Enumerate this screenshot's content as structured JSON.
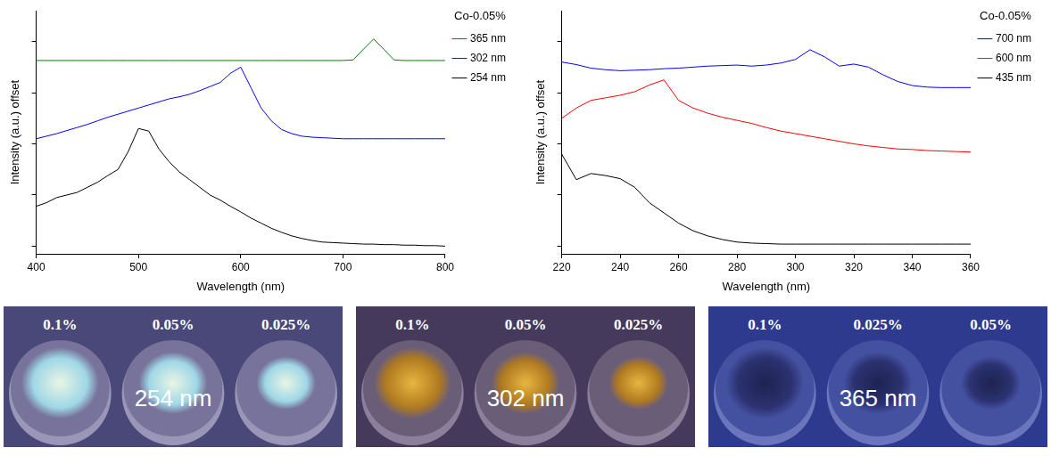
{
  "chart_data": [
    {
      "type": "line",
      "x_label": "Wavelength (nm)",
      "y_label": "Intensity (a.u.) offset",
      "legend_title": "Co-0.05%",
      "legend": "right",
      "grid": false,
      "tick_labels": "x",
      "xlim": [
        400,
        800
      ],
      "xticks": [
        400,
        500,
        600,
        700,
        800
      ],
      "ylim": [
        -0.15,
        4.6
      ],
      "yticks": [
        0,
        1,
        2,
        3,
        4
      ],
      "x": [
        400,
        410,
        420,
        430,
        440,
        450,
        460,
        470,
        480,
        490,
        500,
        510,
        520,
        530,
        540,
        550,
        560,
        570,
        580,
        590,
        600,
        610,
        620,
        630,
        640,
        650,
        660,
        670,
        680,
        690,
        700,
        710,
        720,
        730,
        740,
        750,
        760,
        770,
        780,
        790,
        800
      ],
      "series": [
        {
          "name": "365 nm",
          "color": "#008000",
          "values": [
            3.63,
            3.63,
            3.63,
            3.63,
            3.63,
            3.63,
            3.63,
            3.63,
            3.63,
            3.63,
            3.63,
            3.63,
            3.63,
            3.63,
            3.63,
            3.63,
            3.63,
            3.63,
            3.63,
            3.63,
            3.63,
            3.63,
            3.63,
            3.63,
            3.63,
            3.63,
            3.63,
            3.63,
            3.63,
            3.63,
            3.63,
            3.64,
            3.85,
            4.05,
            3.85,
            3.64,
            3.63,
            3.63,
            3.63,
            3.63,
            3.63
          ]
        },
        {
          "name": "302 nm",
          "color": "#0000ff",
          "values": [
            2.1,
            2.15,
            2.2,
            2.26,
            2.32,
            2.38,
            2.45,
            2.52,
            2.58,
            2.64,
            2.7,
            2.76,
            2.82,
            2.88,
            2.92,
            2.97,
            3.04,
            3.12,
            3.2,
            3.38,
            3.5,
            3.1,
            2.7,
            2.45,
            2.28,
            2.2,
            2.15,
            2.13,
            2.12,
            2.11,
            2.1,
            2.1,
            2.1,
            2.1,
            2.1,
            2.1,
            2.1,
            2.1,
            2.1,
            2.1,
            2.1
          ]
        },
        {
          "name": "254 nm",
          "color": "#000000",
          "values": [
            0.78,
            0.85,
            0.95,
            1.0,
            1.05,
            1.15,
            1.25,
            1.38,
            1.5,
            1.85,
            2.3,
            2.25,
            1.9,
            1.65,
            1.45,
            1.3,
            1.15,
            1.0,
            0.9,
            0.78,
            0.67,
            0.55,
            0.45,
            0.35,
            0.27,
            0.2,
            0.15,
            0.11,
            0.08,
            0.07,
            0.06,
            0.05,
            0.04,
            0.04,
            0.03,
            0.03,
            0.02,
            0.02,
            0.01,
            0.01,
            0.0
          ]
        }
      ]
    },
    {
      "type": "line",
      "x_label": "Wavelength (nm)",
      "y_label": "Intensity (a.u.) offset",
      "legend_title": "Co-0.05%",
      "legend": "right",
      "grid": false,
      "tick_labels": "x",
      "xlim": [
        220,
        360
      ],
      "xticks": [
        220,
        240,
        260,
        280,
        300,
        320,
        340,
        360
      ],
      "ylim": [
        -0.15,
        4.6
      ],
      "yticks": [
        0,
        1,
        2,
        3,
        4
      ],
      "x": [
        220,
        225,
        230,
        235,
        240,
        245,
        250,
        255,
        260,
        265,
        270,
        275,
        280,
        285,
        290,
        295,
        300,
        305,
        310,
        315,
        320,
        325,
        330,
        335,
        340,
        345,
        350,
        355,
        360
      ],
      "series": [
        {
          "name": "700 nm",
          "color": "#0000ff",
          "values": [
            3.6,
            3.55,
            3.48,
            3.45,
            3.43,
            3.44,
            3.45,
            3.47,
            3.48,
            3.5,
            3.52,
            3.53,
            3.54,
            3.52,
            3.54,
            3.58,
            3.65,
            3.84,
            3.7,
            3.52,
            3.56,
            3.5,
            3.35,
            3.22,
            3.14,
            3.11,
            3.1,
            3.1,
            3.1
          ]
        },
        {
          "name": "600 nm",
          "color": "#ff0000",
          "values": [
            2.5,
            2.7,
            2.85,
            2.9,
            2.95,
            3.02,
            3.15,
            3.25,
            2.85,
            2.7,
            2.6,
            2.52,
            2.46,
            2.4,
            2.32,
            2.25,
            2.2,
            2.15,
            2.1,
            2.05,
            2.0,
            1.96,
            1.93,
            1.9,
            1.89,
            1.87,
            1.86,
            1.85,
            1.84
          ]
        },
        {
          "name": "435 nm",
          "color": "#000000",
          "values": [
            1.8,
            1.3,
            1.42,
            1.38,
            1.32,
            1.15,
            0.85,
            0.65,
            0.45,
            0.3,
            0.2,
            0.13,
            0.08,
            0.06,
            0.05,
            0.04,
            0.04,
            0.04,
            0.04,
            0.04,
            0.04,
            0.04,
            0.04,
            0.04,
            0.04,
            0.04,
            0.04,
            0.04,
            0.04
          ]
        }
      ]
    }
  ],
  "photos": [
    {
      "label": "254 nm",
      "samples": [
        "0.1%",
        "0.05%",
        "0.025%"
      ]
    },
    {
      "label": "302 nm",
      "samples": [
        "0.1%",
        "0.05%",
        "0.025%"
      ]
    },
    {
      "label": "365 nm",
      "samples": [
        "0.1%",
        "0.025%",
        "0.05%"
      ]
    }
  ]
}
